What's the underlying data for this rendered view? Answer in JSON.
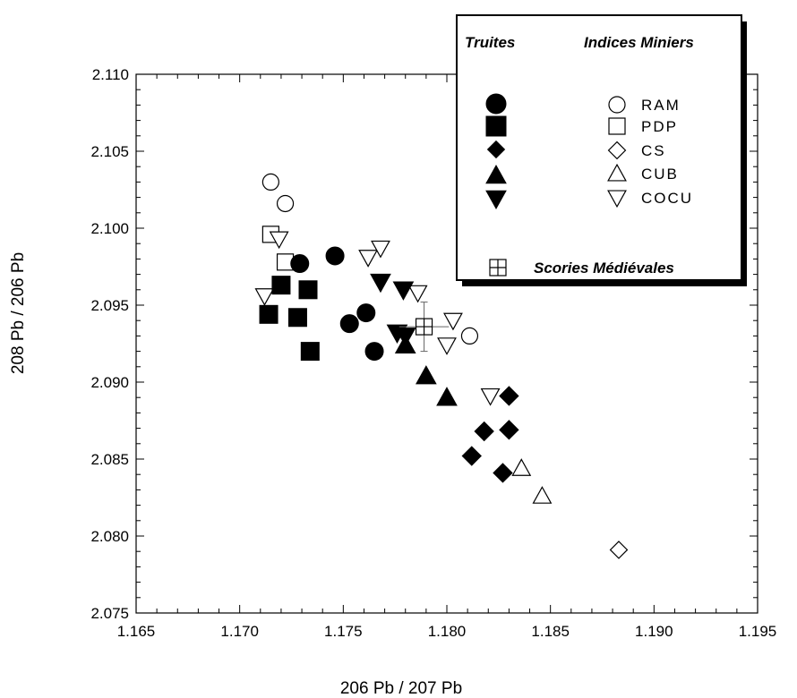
{
  "chart_data": {
    "type": "scatter",
    "xlabel": "206 Pb / 207 Pb",
    "ylabel": "208 Pb / 206 Pb",
    "xlim": [
      1.165,
      1.195
    ],
    "ylim": [
      2.075,
      2.11
    ],
    "xticks": [
      "1.165",
      "1.170",
      "1.175",
      "1.180",
      "1.185",
      "1.190",
      "1.195"
    ],
    "yticks": [
      "2.075",
      "2.080",
      "2.085",
      "2.090",
      "2.095",
      "2.100",
      "2.105",
      "2.110"
    ],
    "grid": false,
    "legend": {
      "placement": "top-right",
      "heading_left": "Truites",
      "heading_right": "Indices Miniers",
      "slag_label": "Scories Médiévales"
    },
    "series": [
      {
        "name": "RAM",
        "group": "Indices Miniers",
        "marker": "circle",
        "filled": false,
        "points": [
          [
            1.1715,
            2.103
          ],
          [
            1.1722,
            2.1016
          ],
          [
            1.1811,
            2.093
          ]
        ]
      },
      {
        "name": "PDP",
        "group": "Indices Miniers",
        "marker": "square",
        "filled": false,
        "points": [
          [
            1.1715,
            2.0996
          ],
          [
            1.1722,
            2.0978
          ]
        ]
      },
      {
        "name": "CS",
        "group": "Indices Miniers",
        "marker": "diamond",
        "filled": false,
        "points": [
          [
            1.1883,
            2.0791
          ]
        ]
      },
      {
        "name": "CUB",
        "group": "Indices Miniers",
        "marker": "triangle-up",
        "filled": false,
        "points": [
          [
            1.1836,
            2.0844
          ],
          [
            1.1846,
            2.0826
          ]
        ]
      },
      {
        "name": "COCU",
        "group": "Indices Miniers",
        "marker": "triangle-down",
        "filled": false,
        "points": [
          [
            1.1712,
            2.0956
          ],
          [
            1.1719,
            2.0993
          ],
          [
            1.1762,
            2.0981
          ],
          [
            1.1768,
            2.0987
          ],
          [
            1.1786,
            2.0958
          ],
          [
            1.18,
            2.0924
          ],
          [
            1.1803,
            2.094
          ],
          [
            1.1821,
            2.0891
          ]
        ]
      },
      {
        "name": "Truites circle",
        "group": "Truites",
        "marker": "circle",
        "filled": true,
        "points": [
          [
            1.1729,
            2.0977
          ],
          [
            1.1746,
            2.0982
          ],
          [
            1.1753,
            2.0938
          ],
          [
            1.1761,
            2.0945
          ],
          [
            1.1765,
            2.092
          ]
        ]
      },
      {
        "name": "Truites square",
        "group": "Truites",
        "marker": "square",
        "filled": true,
        "points": [
          [
            1.172,
            2.0963
          ],
          [
            1.1714,
            2.0944
          ],
          [
            1.1728,
            2.0942
          ],
          [
            1.1733,
            2.096
          ],
          [
            1.1734,
            2.092
          ]
        ]
      },
      {
        "name": "Truites diamond",
        "group": "Truites",
        "marker": "diamond",
        "filled": true,
        "points": [
          [
            1.183,
            2.0891
          ],
          [
            1.1818,
            2.0868
          ],
          [
            1.183,
            2.0869
          ],
          [
            1.1812,
            2.0852
          ],
          [
            1.1827,
            2.0841
          ]
        ]
      },
      {
        "name": "Truites triangle-up",
        "group": "Truites",
        "marker": "triangle-up",
        "filled": true,
        "points": [
          [
            1.178,
            2.0924
          ],
          [
            1.179,
            2.0904
          ],
          [
            1.18,
            2.089
          ]
        ]
      },
      {
        "name": "Truites triangle-down",
        "group": "Truites",
        "marker": "triangle-down",
        "filled": true,
        "points": [
          [
            1.1768,
            2.0965
          ],
          [
            1.1779,
            2.096
          ],
          [
            1.1776,
            2.0932
          ],
          [
            1.178,
            2.093
          ]
        ]
      },
      {
        "name": "Scories Médiévales",
        "group": "Slag",
        "marker": "square-cross",
        "filled": false,
        "points": [
          [
            1.1789,
            2.0936
          ]
        ],
        "error_x": 0.0012,
        "error_y": 0.0016
      }
    ]
  }
}
